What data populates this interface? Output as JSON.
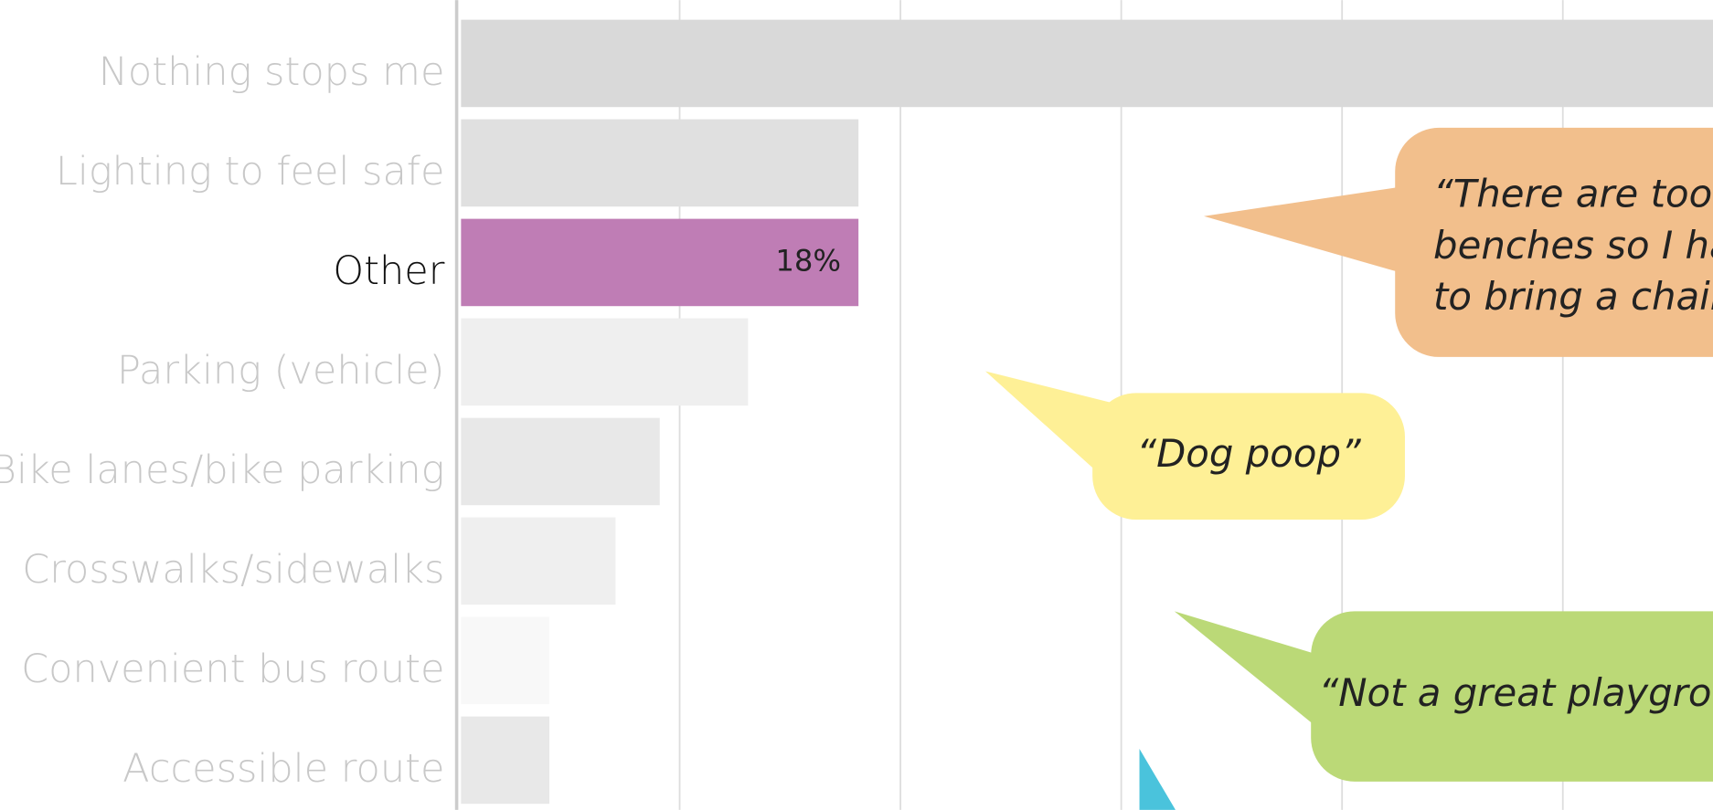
{
  "chart_data": {
    "type": "barh",
    "categories": [
      "Nothing stops me",
      "Lighting to feel safe",
      "Other",
      "Parking (vehicle)",
      "Bike lanes/bike parking",
      "Crosswalks/sidewalks",
      "Convenient bus route",
      "Accessible route"
    ],
    "values": [
      60,
      18,
      18,
      13,
      9,
      7,
      4,
      4
    ],
    "value_labels": [
      null,
      null,
      "18%",
      null,
      null,
      null,
      null,
      null
    ],
    "colors": [
      "#d9d9d9",
      "#e0e0e0",
      "#bf7db5",
      "#efefef",
      "#e8e8e8",
      "#efefef",
      "#f8f8f8",
      "#e8e8e8"
    ],
    "xlim": [
      0,
      56.8
    ],
    "xticks": [
      10,
      20,
      30,
      40,
      50
    ],
    "grid": true
  },
  "callouts": [
    {
      "color": "#f2bf8c",
      "lines": [
        "“There are too m",
        "benches so I ha",
        "to bring a chair"
      ]
    },
    {
      "color": "#fef096",
      "lines": [
        "“Dog poop”"
      ]
    },
    {
      "color": "#bbd977",
      "lines": [
        "“Not a great playgrou"
      ]
    },
    {
      "color": "#4ac3dc",
      "lines": []
    }
  ]
}
